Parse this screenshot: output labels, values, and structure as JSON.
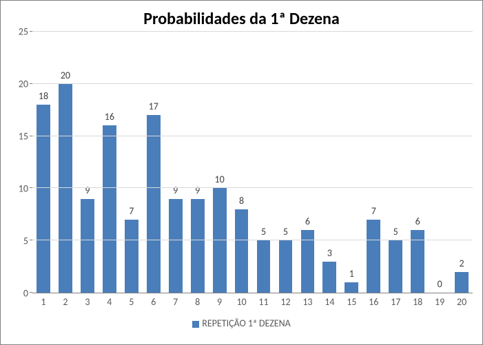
{
  "chart": {
    "type": "bar",
    "title": "Probabilidades da 1ª Dezena",
    "title_fontsize": 24,
    "title_fontweight": "bold",
    "categories": [
      "1",
      "2",
      "3",
      "4",
      "5",
      "6",
      "7",
      "8",
      "9",
      "10",
      "11",
      "12",
      "13",
      "14",
      "15",
      "16",
      "17",
      "18",
      "19",
      "20"
    ],
    "values": [
      18,
      20,
      9,
      16,
      7,
      17,
      9,
      9,
      10,
      8,
      5,
      5,
      6,
      3,
      1,
      7,
      5,
      6,
      0,
      2
    ],
    "bar_color": "#4a7ebb",
    "ylim": [
      0,
      25
    ],
    "ytick_step": 5,
    "yticks": [
      0,
      5,
      10,
      15,
      20,
      25
    ],
    "axis_label_color": "#595959",
    "axis_label_fontsize": 14,
    "grid_color": "#d9d9d9",
    "axis_line_color": "#808080",
    "background_color": "#ffffff",
    "border_color": "#808080",
    "bar_width": 0.62,
    "legend_label": "REPETIÇÃO 1ª DEZENA",
    "legend_fontsize": 14,
    "value_label_color": "#404040"
  }
}
